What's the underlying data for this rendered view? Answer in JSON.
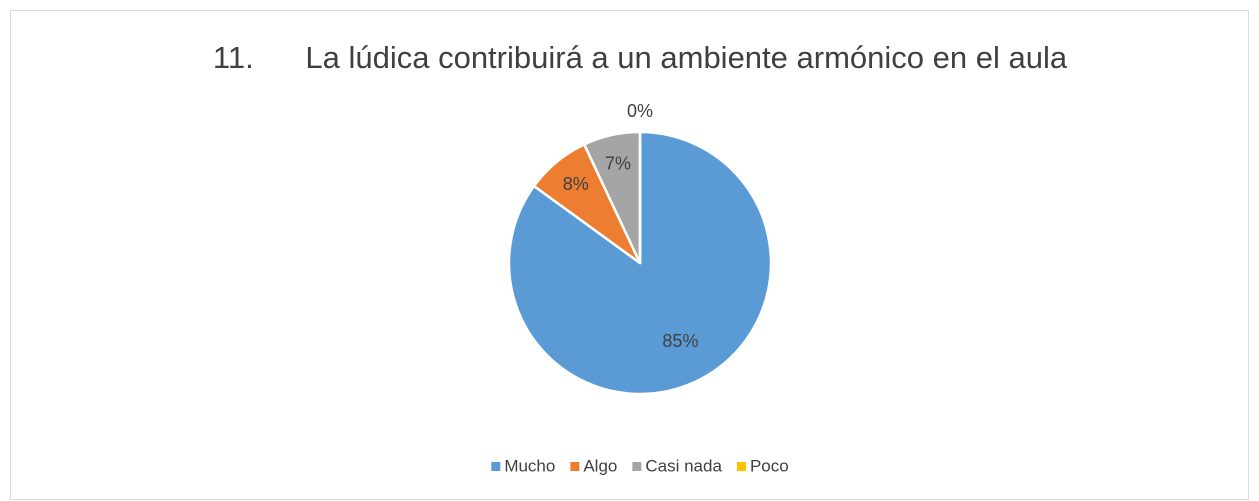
{
  "chart_data": {
    "type": "pie",
    "title": "11.      La lúdica contribuirá a un ambiente armónico en el aula",
    "categories": [
      "Mucho",
      "Algo",
      "Casi nada",
      "Poco"
    ],
    "values": [
      85,
      8,
      7,
      0
    ],
    "value_labels": [
      "85%",
      "8%",
      "7%",
      "0%"
    ],
    "colors": [
      "#5b9bd5",
      "#ed7d31",
      "#a5a5a5",
      "#ffc000"
    ],
    "legend": "bottom"
  }
}
